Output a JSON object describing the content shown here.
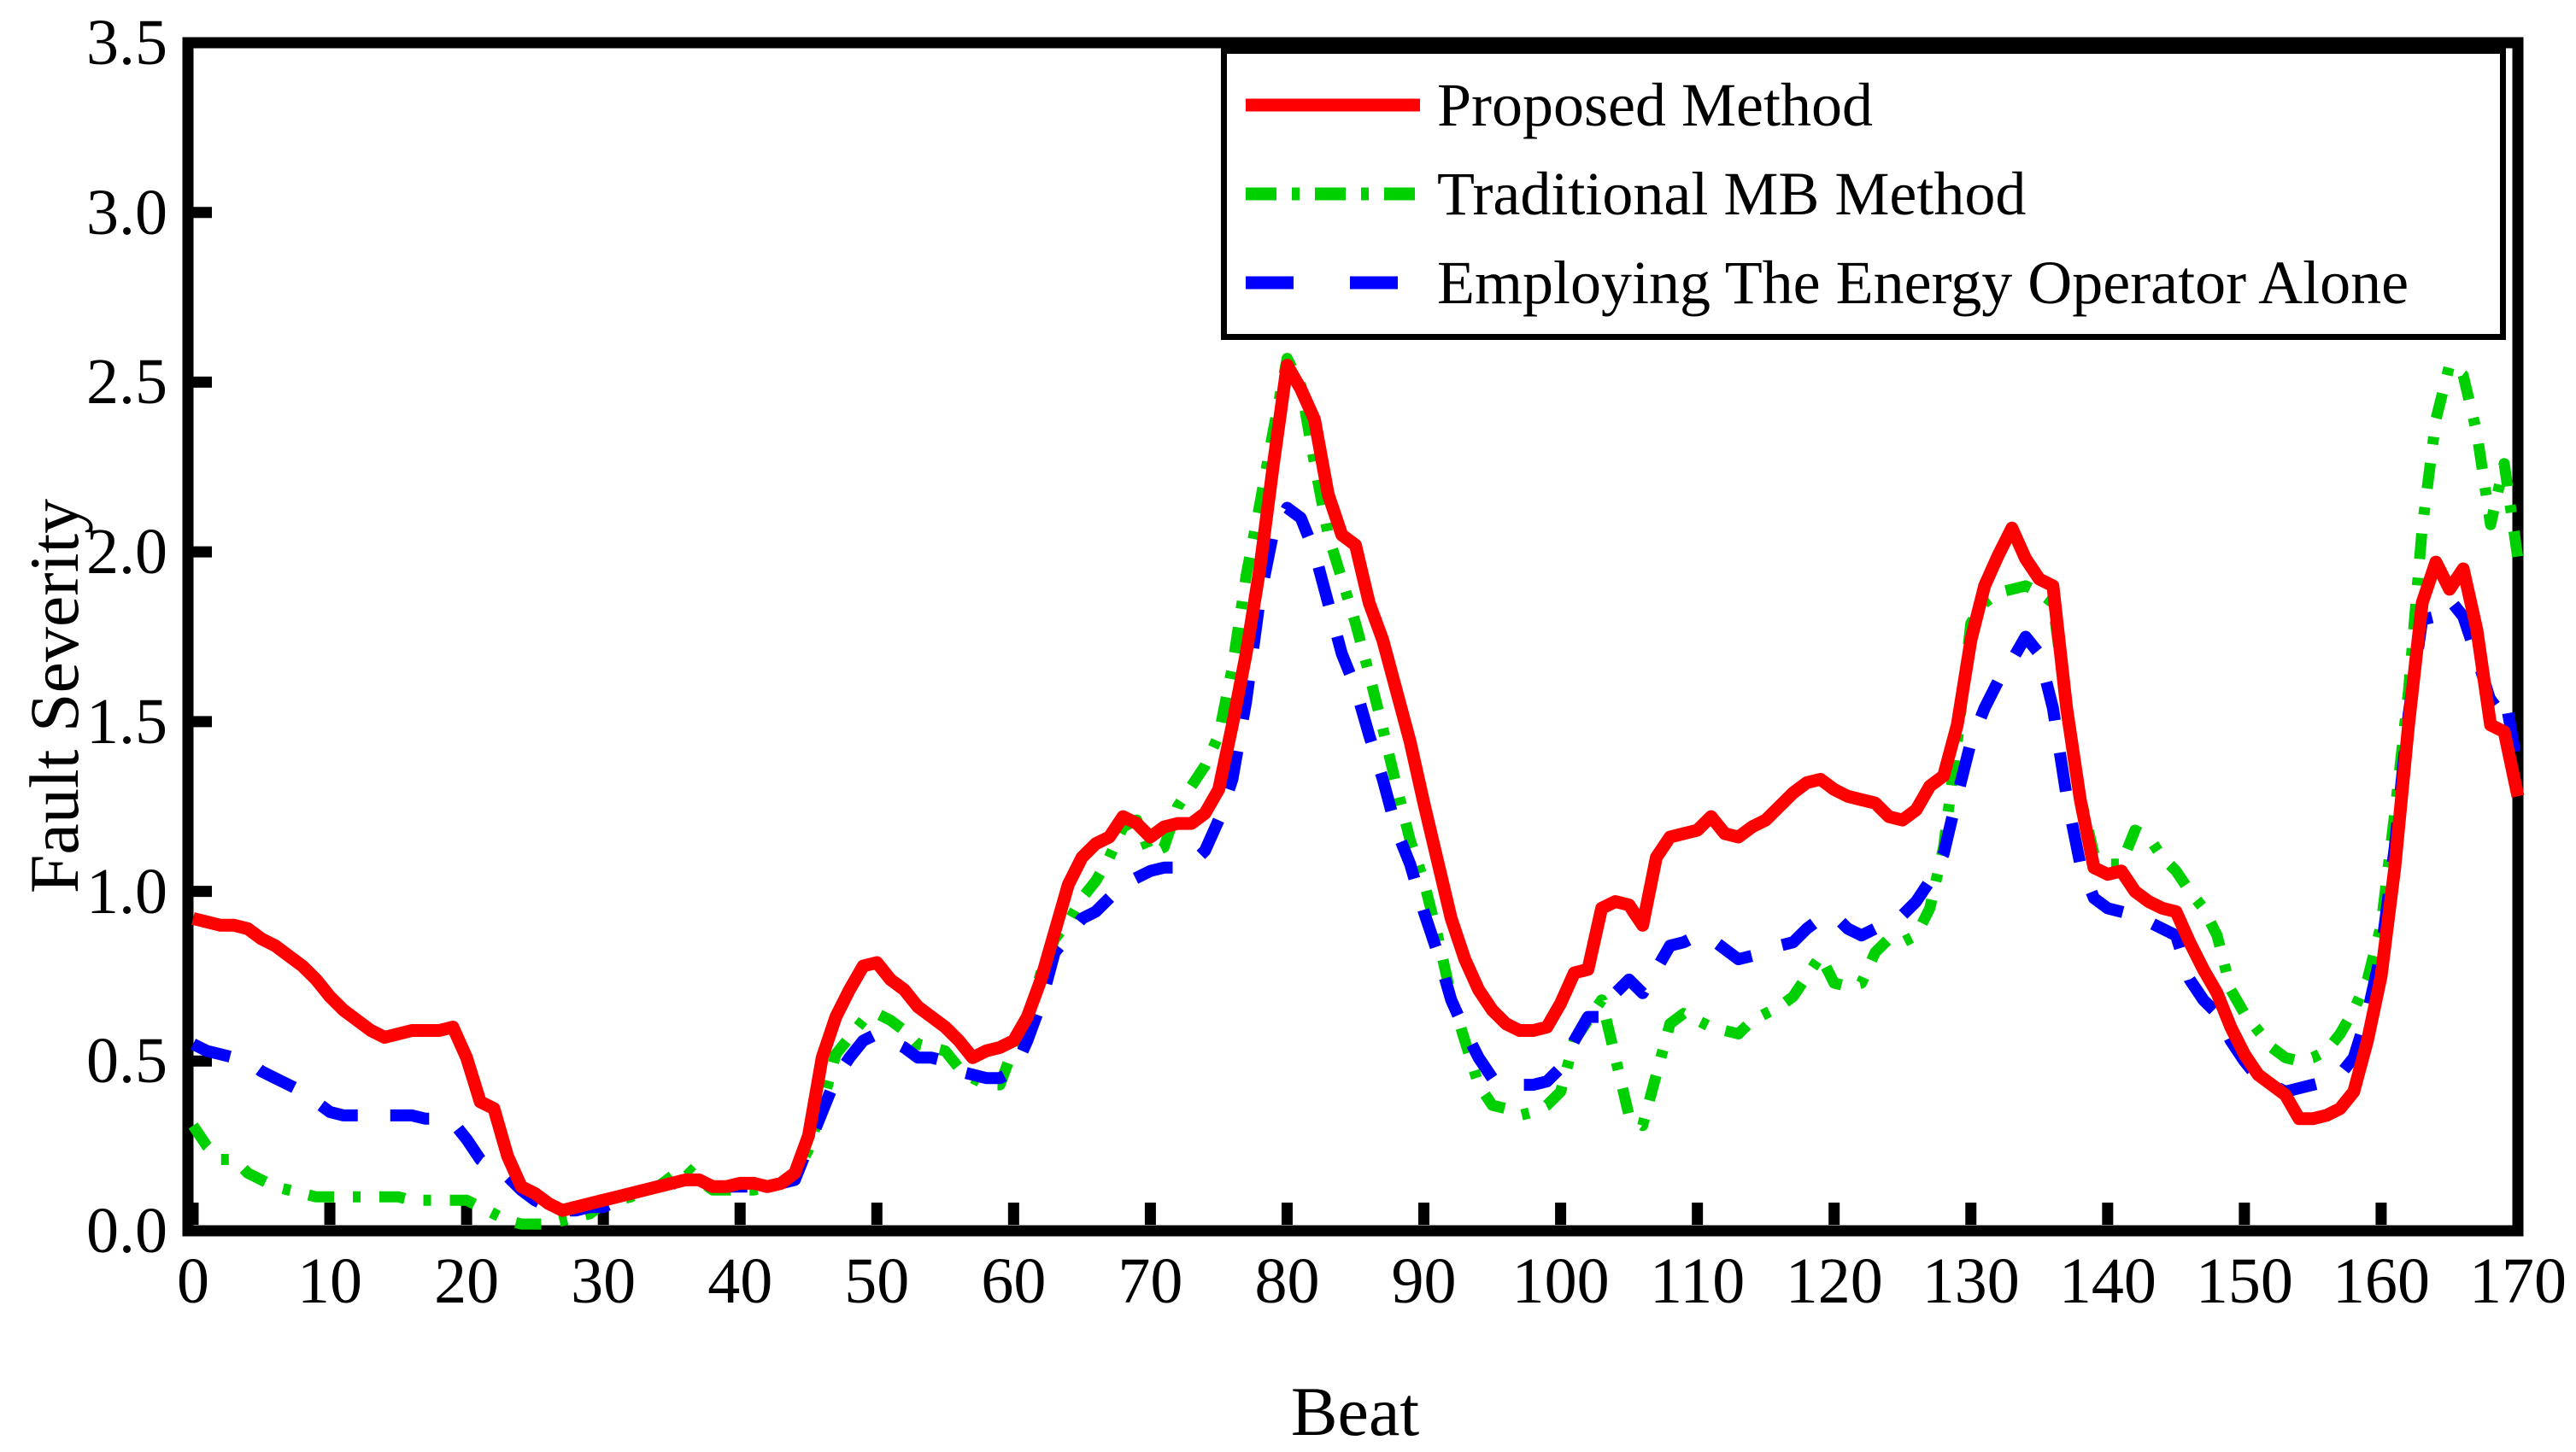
{
  "figure": {
    "background": "#ffffff",
    "axis_color": "#000000",
    "plot_border_width": 13
  },
  "axes": {
    "x_title": "Beat",
    "y_title": "Fault Severity",
    "x_tick_labels": [
      "0",
      "10",
      "20",
      "30",
      "40",
      "50",
      "60",
      "70",
      "80",
      "90",
      "100",
      "110",
      "120",
      "130",
      "140",
      "150",
      "160",
      "170"
    ],
    "y_tick_labels": [
      "0.0",
      "0.5",
      "1.0",
      "1.5",
      "2.0",
      "2.5",
      "3.0",
      "3.5"
    ]
  },
  "chart_data": {
    "type": "line",
    "title": "",
    "xlabel": "Beat",
    "ylabel": "Fault Severity",
    "xlim": [
      0,
      170
    ],
    "ylim": [
      0,
      3.5
    ],
    "x_tick_step": 10,
    "y_tick_step": 0.5,
    "grid": false,
    "legend_position": "top-right",
    "x_start": 0,
    "x_step": 1,
    "series": [
      {
        "name": "Traditional MB Method",
        "color": "#00d000",
        "line_style": "dash-dot",
        "line_width": 13,
        "values": [
          0.31,
          0.25,
          0.21,
          0.21,
          0.17,
          0.15,
          0.13,
          0.12,
          0.11,
          0.1,
          0.1,
          0.1,
          0.1,
          0.1,
          0.1,
          0.1,
          0.09,
          0.09,
          0.09,
          0.09,
          0.09,
          0.07,
          0.05,
          0.03,
          0.02,
          0.02,
          0.02,
          0.03,
          0.04,
          0.05,
          0.08,
          0.09,
          0.1,
          0.12,
          0.13,
          0.16,
          0.19,
          0.15,
          0.12,
          0.12,
          0.12,
          0.12,
          0.13,
          0.14,
          0.16,
          0.24,
          0.37,
          0.52,
          0.57,
          0.62,
          0.64,
          0.62,
          0.59,
          0.55,
          0.54,
          0.53,
          0.48,
          0.45,
          0.43,
          0.43,
          0.54,
          0.62,
          0.76,
          0.86,
          0.91,
          0.98,
          1.03,
          1.1,
          1.19,
          1.21,
          1.11,
          1.13,
          1.25,
          1.31,
          1.37,
          1.46,
          1.66,
          1.93,
          2.14,
          2.36,
          2.57,
          2.49,
          2.26,
          2.05,
          1.92,
          1.79,
          1.64,
          1.48,
          1.31,
          1.15,
          1.03,
          0.87,
          0.69,
          0.56,
          0.43,
          0.37,
          0.36,
          0.34,
          0.35,
          0.37,
          0.41,
          0.56,
          0.62,
          0.68,
          0.51,
          0.34,
          0.31,
          0.46,
          0.61,
          0.64,
          0.62,
          0.6,
          0.59,
          0.58,
          0.62,
          0.64,
          0.66,
          0.69,
          0.75,
          0.81,
          0.73,
          0.72,
          0.73,
          0.82,
          0.86,
          0.85,
          0.87,
          0.95,
          1.13,
          1.44,
          1.79,
          1.85,
          1.88,
          1.89,
          1.9,
          1.88,
          1.85,
          1.54,
          1.28,
          1.11,
          1.08,
          1.08,
          1.18,
          1.16,
          1.1,
          1.06,
          1.0,
          0.95,
          0.87,
          0.71,
          0.64,
          0.59,
          0.54,
          0.51,
          0.5,
          0.51,
          0.53,
          0.58,
          0.65,
          0.74,
          0.9,
          1.23,
          1.59,
          2.07,
          2.39,
          2.55,
          2.52,
          2.35,
          2.08,
          2.26,
          1.98
        ]
      },
      {
        "name": "Proposed Method",
        "color": "#ff0000",
        "line_style": "solid",
        "line_width": 15,
        "values": [
          0.92,
          0.91,
          0.9,
          0.9,
          0.89,
          0.86,
          0.84,
          0.81,
          0.78,
          0.74,
          0.69,
          0.65,
          0.62,
          0.59,
          0.57,
          0.58,
          0.59,
          0.59,
          0.59,
          0.6,
          0.51,
          0.38,
          0.36,
          0.22,
          0.13,
          0.11,
          0.08,
          0.06,
          0.07,
          0.08,
          0.09,
          0.1,
          0.11,
          0.12,
          0.13,
          0.14,
          0.15,
          0.15,
          0.13,
          0.13,
          0.14,
          0.14,
          0.13,
          0.14,
          0.17,
          0.28,
          0.51,
          0.63,
          0.71,
          0.78,
          0.79,
          0.74,
          0.71,
          0.66,
          0.63,
          0.6,
          0.56,
          0.51,
          0.53,
          0.54,
          0.56,
          0.63,
          0.74,
          0.88,
          1.02,
          1.1,
          1.14,
          1.16,
          1.22,
          1.2,
          1.16,
          1.19,
          1.2,
          1.2,
          1.23,
          1.3,
          1.49,
          1.7,
          1.95,
          2.26,
          2.55,
          2.48,
          2.39,
          2.17,
          2.05,
          2.02,
          1.85,
          1.74,
          1.59,
          1.44,
          1.26,
          1.09,
          0.92,
          0.8,
          0.71,
          0.65,
          0.61,
          0.59,
          0.59,
          0.6,
          0.67,
          0.76,
          0.77,
          0.95,
          0.97,
          0.96,
          0.9,
          1.1,
          1.16,
          1.17,
          1.18,
          1.22,
          1.17,
          1.16,
          1.19,
          1.21,
          1.25,
          1.29,
          1.32,
          1.33,
          1.3,
          1.28,
          1.27,
          1.26,
          1.22,
          1.21,
          1.24,
          1.31,
          1.34,
          1.49,
          1.74,
          1.9,
          1.99,
          2.07,
          1.98,
          1.92,
          1.9,
          1.54,
          1.27,
          1.07,
          1.05,
          1.06,
          1.0,
          0.97,
          0.95,
          0.94,
          0.85,
          0.77,
          0.7,
          0.6,
          0.52,
          0.46,
          0.43,
          0.4,
          0.33,
          0.33,
          0.34,
          0.36,
          0.41,
          0.56,
          0.75,
          1.07,
          1.49,
          1.85,
          1.97,
          1.89,
          1.95,
          1.77,
          1.49,
          1.47,
          1.28
        ]
      },
      {
        "name": "Employing The Energy Operator Alone",
        "color": "#0000ff",
        "line_style": "dashed",
        "line_width": 14,
        "values": [
          0.55,
          0.53,
          0.52,
          0.51,
          0.5,
          0.47,
          0.45,
          0.43,
          0.41,
          0.38,
          0.35,
          0.34,
          0.34,
          0.34,
          0.34,
          0.34,
          0.34,
          0.33,
          0.33,
          0.32,
          0.27,
          0.21,
          0.18,
          0.16,
          0.12,
          0.09,
          0.07,
          0.06,
          0.06,
          0.07,
          0.07,
          0.09,
          0.11,
          0.12,
          0.13,
          0.14,
          0.14,
          0.14,
          0.13,
          0.13,
          0.13,
          0.13,
          0.13,
          0.14,
          0.15,
          0.25,
          0.35,
          0.45,
          0.51,
          0.56,
          0.58,
          0.56,
          0.54,
          0.51,
          0.51,
          0.5,
          0.47,
          0.46,
          0.45,
          0.45,
          0.47,
          0.56,
          0.67,
          0.82,
          0.87,
          0.92,
          0.94,
          0.98,
          1.02,
          1.04,
          1.06,
          1.07,
          1.07,
          1.08,
          1.12,
          1.21,
          1.33,
          1.56,
          1.86,
          2.06,
          2.13,
          2.1,
          2.0,
          1.85,
          1.7,
          1.6,
          1.46,
          1.33,
          1.18,
          1.08,
          0.94,
          0.82,
          0.68,
          0.59,
          0.51,
          0.45,
          0.44,
          0.43,
          0.43,
          0.44,
          0.48,
          0.56,
          0.63,
          0.63,
          0.7,
          0.74,
          0.7,
          0.77,
          0.84,
          0.85,
          0.87,
          0.86,
          0.83,
          0.8,
          0.81,
          0.83,
          0.84,
          0.85,
          0.89,
          0.92,
          0.93,
          0.89,
          0.87,
          0.89,
          0.92,
          0.93,
          0.97,
          1.03,
          1.11,
          1.28,
          1.44,
          1.54,
          1.62,
          1.68,
          1.75,
          1.7,
          1.54,
          1.28,
          1.08,
          0.98,
          0.95,
          0.94,
          0.93,
          0.91,
          0.89,
          0.87,
          0.74,
          0.68,
          0.64,
          0.56,
          0.5,
          0.45,
          0.43,
          0.41,
          0.42,
          0.43,
          0.44,
          0.46,
          0.51,
          0.64,
          0.82,
          1.13,
          1.52,
          1.8,
          1.81,
          1.86,
          1.81,
          1.69,
          1.56,
          1.59,
          1.36
        ]
      }
    ]
  }
}
